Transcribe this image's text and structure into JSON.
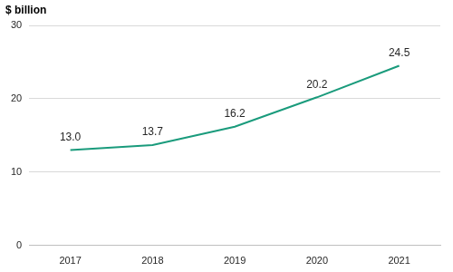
{
  "chart_data": {
    "type": "line",
    "y_label": "$ billion",
    "categories": [
      "2017",
      "2018",
      "2019",
      "2020",
      "2021"
    ],
    "values": [
      13.0,
      13.7,
      16.2,
      20.2,
      24.5
    ],
    "value_labels": [
      "13.0",
      "13.7",
      "16.2",
      "20.2",
      "24.5"
    ],
    "color": "#1a9b7c",
    "ylim": [
      0,
      30
    ],
    "yticks": [
      0,
      10,
      20,
      30
    ],
    "grid": true,
    "data_labels": true
  }
}
